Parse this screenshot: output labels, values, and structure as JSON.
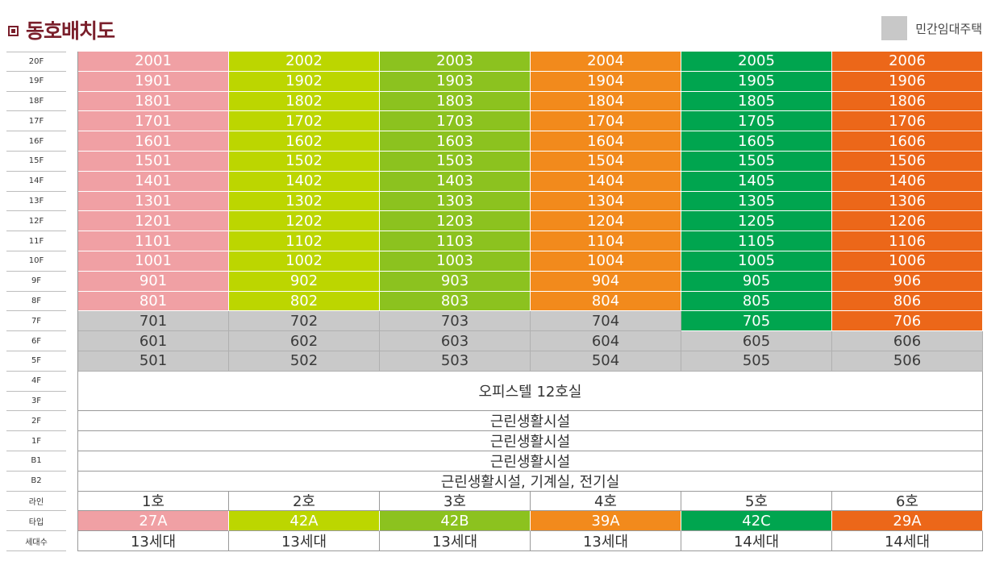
{
  "title": "동호배치도",
  "legend": {
    "label": "민간임대주택",
    "color": "#c8c8c8"
  },
  "floor_labels": [
    "20F",
    "19F",
    "18F",
    "17F",
    "16F",
    "15F",
    "14F",
    "13F",
    "12F",
    "11F",
    "10F",
    "9F",
    "8F",
    "7F",
    "6F",
    "5F",
    "4F",
    "3F",
    "2F",
    "1F",
    "B1",
    "B2",
    "라인",
    "타입",
    "세대수"
  ],
  "line_colors": [
    "#f0a0a4",
    "#bcd600",
    "#8cc21f",
    "#f28a1c",
    "#00a54f",
    "#ec6719"
  ],
  "rental_color": "#c9c9c9",
  "unit_rows": [
    {
      "floor": "20F",
      "units": [
        {
          "no": "2001",
          "rental": false
        },
        {
          "no": "2002",
          "rental": false
        },
        {
          "no": "2003",
          "rental": false
        },
        {
          "no": "2004",
          "rental": false
        },
        {
          "no": "2005",
          "rental": false
        },
        {
          "no": "2006",
          "rental": false
        }
      ]
    },
    {
      "floor": "19F",
      "units": [
        {
          "no": "1901",
          "rental": false
        },
        {
          "no": "1902",
          "rental": false
        },
        {
          "no": "1903",
          "rental": false
        },
        {
          "no": "1904",
          "rental": false
        },
        {
          "no": "1905",
          "rental": false
        },
        {
          "no": "1906",
          "rental": false
        }
      ]
    },
    {
      "floor": "18F",
      "units": [
        {
          "no": "1801",
          "rental": false
        },
        {
          "no": "1802",
          "rental": false
        },
        {
          "no": "1803",
          "rental": false
        },
        {
          "no": "1804",
          "rental": false
        },
        {
          "no": "1805",
          "rental": false
        },
        {
          "no": "1806",
          "rental": false
        }
      ]
    },
    {
      "floor": "17F",
      "units": [
        {
          "no": "1701",
          "rental": false
        },
        {
          "no": "1702",
          "rental": false
        },
        {
          "no": "1703",
          "rental": false
        },
        {
          "no": "1704",
          "rental": false
        },
        {
          "no": "1705",
          "rental": false
        },
        {
          "no": "1706",
          "rental": false
        }
      ]
    },
    {
      "floor": "16F",
      "units": [
        {
          "no": "1601",
          "rental": false
        },
        {
          "no": "1602",
          "rental": false
        },
        {
          "no": "1603",
          "rental": false
        },
        {
          "no": "1604",
          "rental": false
        },
        {
          "no": "1605",
          "rental": false
        },
        {
          "no": "1606",
          "rental": false
        }
      ]
    },
    {
      "floor": "15F",
      "units": [
        {
          "no": "1501",
          "rental": false
        },
        {
          "no": "1502",
          "rental": false
        },
        {
          "no": "1503",
          "rental": false
        },
        {
          "no": "1504",
          "rental": false
        },
        {
          "no": "1505",
          "rental": false
        },
        {
          "no": "1506",
          "rental": false
        }
      ]
    },
    {
      "floor": "14F",
      "units": [
        {
          "no": "1401",
          "rental": false
        },
        {
          "no": "1402",
          "rental": false
        },
        {
          "no": "1403",
          "rental": false
        },
        {
          "no": "1404",
          "rental": false
        },
        {
          "no": "1405",
          "rental": false
        },
        {
          "no": "1406",
          "rental": false
        }
      ]
    },
    {
      "floor": "13F",
      "units": [
        {
          "no": "1301",
          "rental": false
        },
        {
          "no": "1302",
          "rental": false
        },
        {
          "no": "1303",
          "rental": false
        },
        {
          "no": "1304",
          "rental": false
        },
        {
          "no": "1305",
          "rental": false
        },
        {
          "no": "1306",
          "rental": false
        }
      ]
    },
    {
      "floor": "12F",
      "units": [
        {
          "no": "1201",
          "rental": false
        },
        {
          "no": "1202",
          "rental": false
        },
        {
          "no": "1203",
          "rental": false
        },
        {
          "no": "1204",
          "rental": false
        },
        {
          "no": "1205",
          "rental": false
        },
        {
          "no": "1206",
          "rental": false
        }
      ]
    },
    {
      "floor": "11F",
      "units": [
        {
          "no": "1101",
          "rental": false
        },
        {
          "no": "1102",
          "rental": false
        },
        {
          "no": "1103",
          "rental": false
        },
        {
          "no": "1104",
          "rental": false
        },
        {
          "no": "1105",
          "rental": false
        },
        {
          "no": "1106",
          "rental": false
        }
      ]
    },
    {
      "floor": "10F",
      "units": [
        {
          "no": "1001",
          "rental": false
        },
        {
          "no": "1002",
          "rental": false
        },
        {
          "no": "1003",
          "rental": false
        },
        {
          "no": "1004",
          "rental": false
        },
        {
          "no": "1005",
          "rental": false
        },
        {
          "no": "1006",
          "rental": false
        }
      ]
    },
    {
      "floor": "9F",
      "units": [
        {
          "no": "901",
          "rental": false
        },
        {
          "no": "902",
          "rental": false
        },
        {
          "no": "903",
          "rental": false
        },
        {
          "no": "904",
          "rental": false
        },
        {
          "no": "905",
          "rental": false
        },
        {
          "no": "906",
          "rental": false
        }
      ]
    },
    {
      "floor": "8F",
      "units": [
        {
          "no": "801",
          "rental": false
        },
        {
          "no": "802",
          "rental": false
        },
        {
          "no": "803",
          "rental": false
        },
        {
          "no": "804",
          "rental": false
        },
        {
          "no": "805",
          "rental": false
        },
        {
          "no": "806",
          "rental": false
        }
      ]
    },
    {
      "floor": "7F",
      "units": [
        {
          "no": "701",
          "rental": true
        },
        {
          "no": "702",
          "rental": true
        },
        {
          "no": "703",
          "rental": true
        },
        {
          "no": "704",
          "rental": true
        },
        {
          "no": "705",
          "rental": false
        },
        {
          "no": "706",
          "rental": false
        }
      ]
    },
    {
      "floor": "6F",
      "units": [
        {
          "no": "601",
          "rental": true
        },
        {
          "no": "602",
          "rental": true
        },
        {
          "no": "603",
          "rental": true
        },
        {
          "no": "604",
          "rental": true
        },
        {
          "no": "605",
          "rental": true
        },
        {
          "no": "606",
          "rental": true
        }
      ]
    },
    {
      "floor": "5F",
      "units": [
        {
          "no": "501",
          "rental": true
        },
        {
          "no": "502",
          "rental": true
        },
        {
          "no": "503",
          "rental": true
        },
        {
          "no": "504",
          "rental": true
        },
        {
          "no": "505",
          "rental": true
        },
        {
          "no": "506",
          "rental": true
        }
      ]
    }
  ],
  "merged_rows": [
    {
      "floors": "4F-3F",
      "span": 2,
      "text": "오피스텔 12호실"
    },
    {
      "floors": "2F",
      "span": 1,
      "text": "근린생활시설"
    },
    {
      "floors": "1F",
      "span": 1,
      "text": "근린생활시설"
    },
    {
      "floors": "B1",
      "span": 1,
      "text": "근린생활시설"
    },
    {
      "floors": "B2",
      "span": 1,
      "text": "근린생활시설, 기계실, 전기실"
    }
  ],
  "lines": [
    "1호",
    "2호",
    "3호",
    "4호",
    "5호",
    "6호"
  ],
  "types": [
    "27A",
    "42A",
    "42B",
    "39A",
    "42C",
    "29A"
  ],
  "households": [
    "13세대",
    "13세대",
    "13세대",
    "13세대",
    "14세대",
    "14세대"
  ]
}
